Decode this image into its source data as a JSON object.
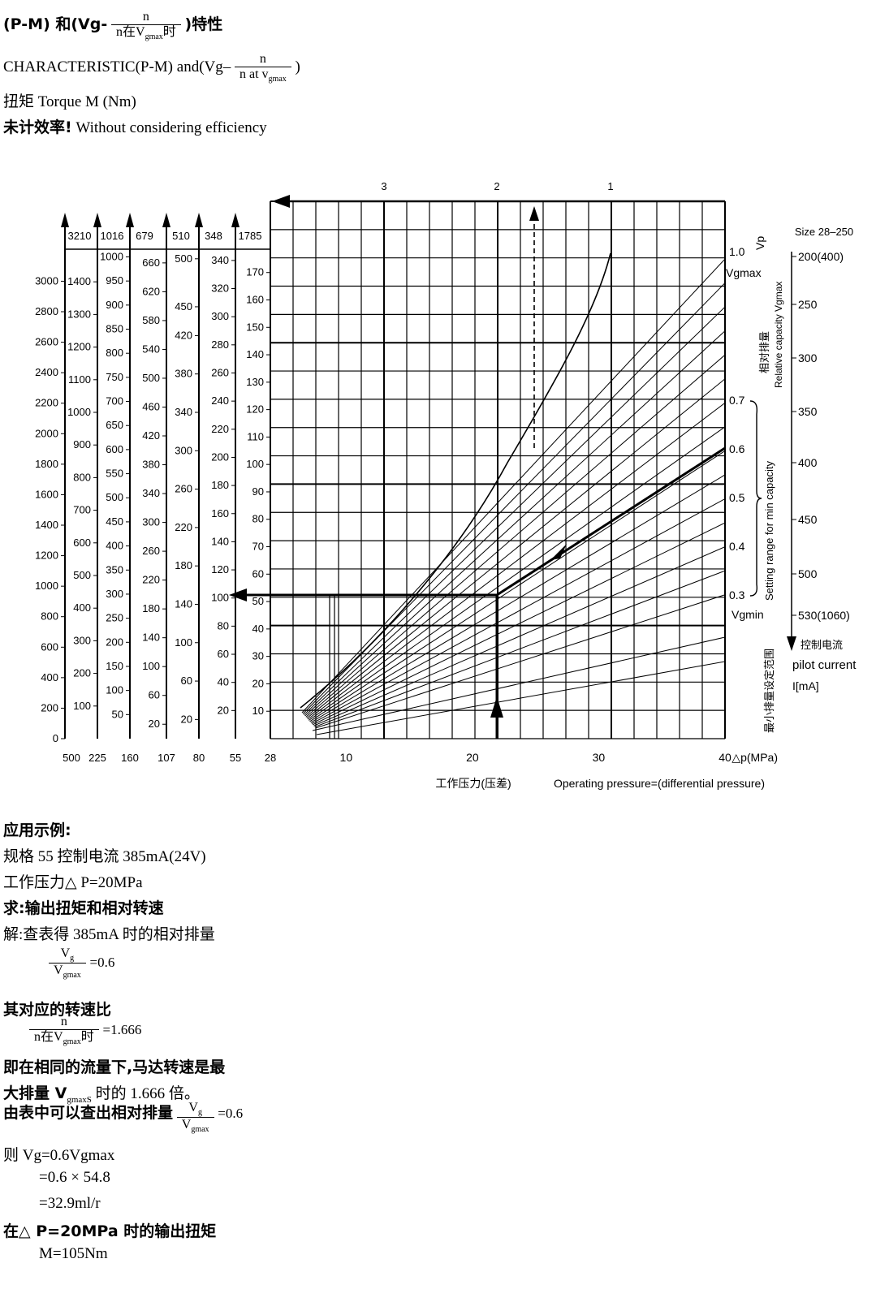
{
  "header": {
    "line1_left": "(P-M) 和(Vg-",
    "line1_num": "n",
    "line1_den": "n在V",
    "line1_den_sub": "gmax",
    "line1_den_tail": "时",
    "line1_right": ")特性",
    "line2_left": "CHARACTERISTIC(P-M) and(Vg–",
    "line2_num": "n",
    "line2_den": "n at v",
    "line2_den_sub": "gmax",
    "line2_right": ")",
    "line3": "扭矩 Torque M (Nm)",
    "line4_cn": "未计效率!",
    "line4_en": "Without considering efficiency"
  },
  "chart_data": {
    "type": "line",
    "top_numbers": [
      "3",
      "2",
      "1"
    ],
    "left_scales": [
      {
        "top_label": "3210",
        "ticks": [
          0,
          200,
          400,
          600,
          800,
          1000,
          1200,
          1400,
          1600,
          1800,
          2000,
          2200,
          2400,
          2600,
          2800,
          3000
        ],
        "tick_labels": [
          "0",
          "200",
          "400",
          "600",
          "800",
          "1000",
          "1200",
          "1400",
          "1600",
          "1800",
          "2000",
          "2200",
          "2400",
          "2600",
          "2800",
          "3000"
        ],
        "max": 3210,
        "size": "500"
      },
      {
        "top_label": "1016",
        "ticks": [
          100,
          200,
          300,
          400,
          500,
          600,
          700,
          800,
          900,
          1000,
          1100,
          1200,
          1300,
          1400
        ],
        "tick_labels": [
          "100",
          "200",
          "300",
          "400",
          "500",
          "600",
          "700",
          "800",
          "900",
          "1000",
          "1100",
          "1200",
          "1300",
          "1400"
        ],
        "max": 1500,
        "size": "225"
      },
      {
        "top_label": "679",
        "ticks": [
          50,
          100,
          150,
          200,
          250,
          300,
          350,
          400,
          450,
          500,
          550,
          600,
          650,
          700,
          750,
          800,
          850,
          900,
          950,
          1000
        ],
        "tick_labels": [
          "50",
          "100",
          "150",
          "200",
          "250",
          "300",
          "350",
          "400",
          "450",
          "500",
          "550",
          "600",
          "650",
          "700",
          "750",
          "800",
          "850",
          "900",
          "950",
          "1000"
        ],
        "max": 1016,
        "size": "160"
      },
      {
        "top_label": "510",
        "ticks": [
          20,
          60,
          100,
          140,
          180,
          220,
          260,
          300,
          340,
          380,
          420,
          460,
          500,
          540,
          580,
          620,
          660
        ],
        "tick_labels": [
          "20",
          "60",
          "100",
          "140",
          "180",
          "220",
          "260",
          "300",
          "340",
          "380",
          "420",
          "460",
          "500",
          "540",
          "580",
          "620",
          "660"
        ],
        "max": 679,
        "size": "107"
      },
      {
        "top_label": "348",
        "ticks": [
          20,
          60,
          100,
          140,
          180,
          220,
          260,
          300,
          340,
          380,
          420,
          450,
          500
        ],
        "tick_labels": [
          "20",
          "60",
          "100",
          "140",
          "180",
          "220",
          "260",
          "300",
          "340",
          "380",
          "420",
          "450",
          "500"
        ],
        "max": 510,
        "size": "80"
      },
      {
        "top_label": "1785",
        "ticks": [
          20,
          40,
          60,
          80,
          100,
          120,
          140,
          160,
          180,
          200,
          220,
          240,
          260,
          280,
          300,
          320,
          340
        ],
        "tick_labels": [
          "20",
          "40",
          "60",
          "80",
          "100",
          "120",
          "140",
          "160",
          "180",
          "200",
          "220",
          "240",
          "260",
          "280",
          "300",
          "320",
          "340"
        ],
        "max": 348,
        "size": "55"
      },
      {
        "top_label": "",
        "ticks": [
          10,
          20,
          30,
          40,
          50,
          60,
          70,
          80,
          90,
          100,
          110,
          120,
          130,
          140,
          150,
          160,
          170
        ],
        "tick_labels": [
          "10",
          "20",
          "30",
          "40",
          "50",
          "60",
          "70",
          "80",
          "90",
          "100",
          "110",
          "120",
          "130",
          "140",
          "150",
          "160",
          "170"
        ],
        "max": 178.5,
        "size": "28"
      }
    ],
    "x_ticks": [
      10,
      20,
      30,
      40
    ],
    "x_tick_labels": [
      "10",
      "20",
      "30",
      "40"
    ],
    "x_unit": "△p(MPa)",
    "x_label_cn": "工作压力(压差)",
    "x_label_en": "Operating pressure=(differential pressure)",
    "xlim": [
      0,
      40
    ],
    "vgmax_label": "Vgmax",
    "vgmin_label": "Vgmin",
    "vp_label": "Vp",
    "right_ratio_ticks": [
      1.0,
      0.7,
      0.6,
      0.5,
      0.4,
      0.3
    ],
    "right_ratio_labels": [
      "1.0",
      "0.7",
      "0.6",
      "0.5",
      "0.4",
      "0.3"
    ],
    "rel_cap_cn": "相对排量",
    "rel_cap_en": "Relative capacity Vgmax",
    "setting_en": "Setting range for min capacity",
    "setting_cn": "最小排量设定范围",
    "size_label": "Size 28–250",
    "current_ticks": [
      "200(400)",
      "250",
      "300",
      "350",
      "400",
      "450",
      "500",
      "530(1060)"
    ],
    "current_cn": "控制电流",
    "current_en": "pilot current",
    "current_unit": "I[mA]",
    "example_point": {
      "pressure": 20,
      "ratio": 0.6,
      "torque_size55": 105
    }
  },
  "example": {
    "title": "应用示例:",
    "l1": "规格 55 控制电流 385mA(24V)",
    "l2": "工作压力△ P=20MPa",
    "l3": "求:输出扭矩和相对转速",
    "l4": "解:查表得 385mA 时的相对排量",
    "f1_num": "V",
    "f1_num_sub": "g",
    "f1_den": "V",
    "f1_den_sub": "gmax",
    "f1_val": "=0.6",
    "l5": "其对应的转速比",
    "f2_num": "n",
    "f2_den": "n在V",
    "f2_den_sub": "gmax",
    "f2_den_tail": "时",
    "f2_val": "=1.666",
    "l6": "即在相同的流量下,马达转速是最",
    "l7a": "大排量 V",
    "l7_sub": "gmaxS",
    "l7b": "时的 1.666 倍。",
    "l8": "由表中可以查出相对排量",
    "f3_num": "V",
    "f3_num_sub": "g",
    "f3_den": "V",
    "f3_den_sub": "gmax",
    "f3_val": "=0.6",
    "l9": "则 Vg=0.6Vgmax",
    "l10": "=0.6 × 54.8",
    "l11": "=32.9ml/r",
    "l12": "在△ P=20MPa 时的输出扭矩",
    "l13": "M=105Nm"
  }
}
